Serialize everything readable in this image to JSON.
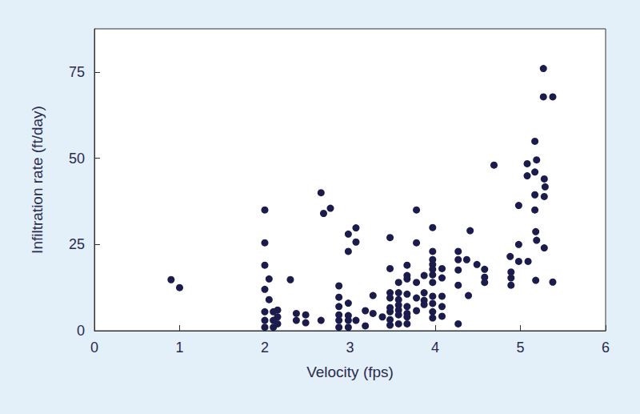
{
  "chart_data": {
    "type": "scatter",
    "xlabel": "Velocity (fps)",
    "ylabel": "Infiltration rate (ft/day)",
    "color": "#1c1c4c",
    "marker": "circle",
    "grid": false,
    "xlim": [
      0,
      6
    ],
    "xticks": [
      0,
      1,
      2,
      3,
      4,
      5,
      6
    ],
    "ylim": [
      0,
      87.5
    ],
    "yticks": [
      0,
      25,
      50,
      75
    ],
    "x": [
      0.9,
      1.0,
      2.0,
      2.0,
      2.0,
      2.0,
      2.0,
      2.0,
      2.0,
      2.05,
      2.05,
      2.1,
      2.1,
      2.1,
      2.15,
      2.15,
      2.15,
      2.3,
      2.37,
      2.37,
      2.48,
      2.48,
      2.66,
      2.69,
      2.77,
      2.66,
      2.87,
      2.87,
      2.87,
      2.87,
      2.87,
      2.87,
      2.98,
      2.98,
      2.98,
      2.98,
      2.98,
      2.98,
      3.07,
      3.07,
      3.07,
      3.18,
      3.18,
      3.27,
      3.27,
      3.38,
      3.47,
      3.47,
      3.47,
      3.47,
      3.47,
      3.47,
      3.47,
      3.47,
      3.57,
      3.57,
      3.57,
      3.57,
      3.57,
      3.57,
      3.57,
      3.67,
      3.67,
      3.67,
      3.67,
      3.67,
      3.67,
      3.67,
      3.67,
      3.78,
      3.78,
      3.78,
      3.78,
      3.78,
      3.87,
      3.87,
      3.87,
      3.87,
      3.97,
      3.97,
      3.97,
      3.97,
      3.97,
      3.97,
      3.97,
      3.97,
      3.97,
      3.97,
      3.97,
      4.08,
      4.08,
      4.08,
      4.08,
      4.08,
      4.27,
      4.27,
      4.27,
      4.27,
      4.27,
      4.37,
      4.41,
      4.39,
      4.49,
      4.58,
      4.58,
      4.58,
      4.69,
      4.88,
      4.89,
      4.89,
      4.89,
      4.98,
      4.98,
      4.98,
      5.08,
      5.08,
      5.09,
      5.17,
      5.19,
      5.17,
      5.17,
      5.17,
      5.18,
      5.19,
      5.18,
      5.27,
      5.27,
      5.28,
      5.29,
      5.28,
      5.28,
      5.38,
      5.38
    ],
    "values": [
      14.8,
      12.5,
      35,
      25.5,
      19,
      12,
      5.5,
      3,
      1,
      15,
      9,
      5.5,
      3,
      1,
      6,
      4,
      2,
      14.8,
      5,
      3,
      4.6,
      2.3,
      40,
      34,
      35.5,
      3,
      13,
      9.7,
      7,
      4.6,
      3,
      1,
      28,
      23,
      8,
      4.4,
      3,
      1,
      29.8,
      25.7,
      3,
      5.8,
      1.4,
      10.2,
      5,
      4,
      27,
      18,
      11,
      9.5,
      6.7,
      5.5,
      3.2,
      1.6,
      14,
      11,
      9,
      7.4,
      6,
      4.6,
      2,
      19,
      16,
      15,
      10.6,
      7,
      5,
      4,
      2,
      35,
      25.5,
      14,
      9.5,
      5.8,
      16,
      11,
      8.8,
      7.6,
      29.9,
      23,
      20.6,
      19.2,
      17.8,
      16.2,
      14,
      10,
      7.9,
      5.5,
      3.7,
      18,
      15.3,
      10,
      7,
      4.2,
      23,
      20.6,
      17.6,
      13.2,
      2,
      20.6,
      29,
      10.2,
      19.2,
      17.8,
      15.5,
      14,
      48,
      21.5,
      17,
      15.3,
      13.2,
      36.3,
      25,
      20.1,
      48.4,
      44.9,
      20.1,
      54.9,
      49.5,
      46,
      39.4,
      35,
      28.7,
      26.2,
      14.6,
      76,
      67.8,
      44,
      41.7,
      38.9,
      24,
      67.8,
      14.1
    ]
  }
}
